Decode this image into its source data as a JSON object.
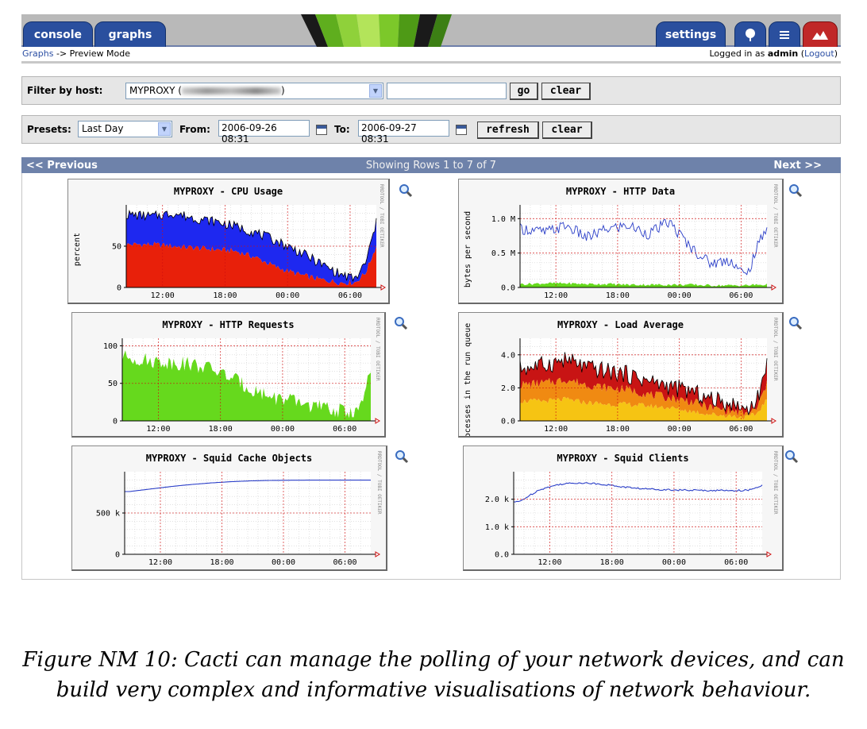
{
  "header": {
    "tabs": [
      {
        "label": "console"
      },
      {
        "label": "graphs"
      },
      {
        "label": "settings"
      }
    ]
  },
  "breadcrumb": {
    "link": "Graphs",
    "separator": " -> ",
    "current": "Preview Mode"
  },
  "login": {
    "prefix": "Logged in as ",
    "user": "admin",
    "logout": "Logout"
  },
  "host_filter": {
    "label": "Filter by host:",
    "selected_prefix": "MYPROXY (",
    "selected_suffix": ")",
    "search_value": "",
    "go_label": "go",
    "clear_label": "clear"
  },
  "presets": {
    "label": "Presets:",
    "selected": "Last Day",
    "from_label": "From:",
    "from_value": "2006-09-26 08:31",
    "to_label": "To:",
    "to_value": "2006-09-27 08:31",
    "refresh_label": "refresh",
    "clear_label": "clear"
  },
  "pager": {
    "prev": "<< Previous",
    "status": "Showing Rows 1 to 7 of 7",
    "next": "Next >>"
  },
  "watermark": "RRDTOOL / TOBI OETIKER",
  "x_ticks": [
    "12:00",
    "18:00",
    "00:00",
    "06:00"
  ],
  "colors": {
    "red": "#e8200a",
    "blue": "#1e28f0",
    "green": "#66d91d",
    "line_blue": "#2a3ec8",
    "orange": "#f08a12",
    "yellow": "#f6c413",
    "dark_red": "#c81414"
  },
  "graphs": [
    {
      "title": "MYPROXY - CPU Usage",
      "ylabel": "percent",
      "yticks": [
        "50",
        "0"
      ]
    },
    {
      "title": "MYPROXY - HTTP Data",
      "ylabel": "bytes per second",
      "yticks": [
        "1.0 M",
        "0.5 M",
        "0.0"
      ]
    },
    {
      "title": "MYPROXY - HTTP Requests",
      "ylabel": "",
      "yticks": [
        "100",
        "50",
        "0"
      ]
    },
    {
      "title": "MYPROXY - Load Average",
      "ylabel": "rocesses in the run queue",
      "yticks": [
        "4.0",
        "2.0",
        "0.0"
      ]
    },
    {
      "title": "MYPROXY - Squid Cache Objects",
      "ylabel": "",
      "yticks": [
        "500 k",
        "0"
      ]
    },
    {
      "title": "MYPROXY - Squid Clients",
      "ylabel": "",
      "yticks": [
        "2.0 k",
        "1.0 k",
        "0.0"
      ]
    }
  ],
  "chart_data": [
    {
      "type": "area",
      "title": "MYPROXY - CPU Usage",
      "ylabel": "percent",
      "ylim": [
        0,
        100
      ],
      "x": [
        "09:00",
        "11:00",
        "13:00",
        "15:00",
        "17:00",
        "19:00",
        "21:00",
        "23:00",
        "01:00",
        "03:00",
        "05:00",
        "06:30",
        "07:30",
        "08:30"
      ],
      "series": [
        {
          "values": [
            52,
            52,
            50,
            48,
            46,
            44,
            36,
            24,
            16,
            10,
            6,
            6,
            18,
            50
          ]
        },
        {
          "values": [
            88,
            86,
            90,
            84,
            80,
            74,
            66,
            56,
            44,
            30,
            16,
            10,
            30,
            78
          ]
        }
      ]
    },
    {
      "type": "line",
      "title": "MYPROXY - HTTP Data",
      "ylabel": "bytes per second",
      "ylim": [
        0,
        1.2
      ],
      "x": [
        "09:00",
        "11:00",
        "13:00",
        "15:00",
        "17:00",
        "19:00",
        "21:00",
        "23:00",
        "01:00",
        "03:00",
        "05:00",
        "06:30",
        "07:30",
        "08:30"
      ],
      "series": [
        {
          "values": [
            0.85,
            0.8,
            0.9,
            0.72,
            0.85,
            0.9,
            0.78,
            0.95,
            0.6,
            0.35,
            0.4,
            0.15,
            0.55,
            0.9
          ]
        },
        {
          "values": [
            0.05,
            0.06,
            0.06,
            0.05,
            0.05,
            0.04,
            0.04,
            0.04,
            0.04,
            0.03,
            0.03,
            0.03,
            0.04,
            0.04
          ]
        }
      ]
    },
    {
      "type": "area",
      "title": "MYPROXY - HTTP Requests",
      "ylim": [
        0,
        110
      ],
      "x": [
        "09:00",
        "11:00",
        "13:00",
        "15:00",
        "17:00",
        "19:00",
        "21:00",
        "23:00",
        "01:00",
        "03:00",
        "05:00",
        "06:30",
        "07:30",
        "08:30"
      ],
      "series": [
        {
          "values": [
            85,
            80,
            78,
            76,
            70,
            58,
            42,
            32,
            26,
            20,
            14,
            12,
            16,
            65
          ]
        }
      ]
    },
    {
      "type": "area",
      "title": "MYPROXY - Load Average",
      "ylabel": "rocesses in the run queue",
      "ylim": [
        0,
        5
      ],
      "x": [
        "09:00",
        "11:00",
        "13:00",
        "15:00",
        "17:00",
        "19:00",
        "21:00",
        "23:00",
        "01:00",
        "03:00",
        "05:00",
        "06:30",
        "07:30",
        "08:30"
      ],
      "series": [
        {
          "values": [
            1.2,
            1.2,
            1.3,
            1.1,
            1.0,
            1.0,
            0.9,
            0.8,
            0.6,
            0.4,
            0.3,
            0.2,
            0.4,
            1.3
          ]
        },
        {
          "values": [
            2.2,
            2.3,
            2.5,
            2.2,
            2.0,
            1.9,
            1.6,
            1.4,
            1.2,
            0.8,
            0.6,
            0.4,
            0.7,
            2.2
          ]
        },
        {
          "values": [
            3.2,
            3.4,
            3.7,
            3.2,
            3.0,
            2.8,
            2.4,
            2.1,
            1.8,
            1.3,
            1.0,
            0.7,
            1.1,
            3.4
          ]
        }
      ]
    },
    {
      "type": "line",
      "title": "MYPROXY - Squid Cache Objects",
      "ylim": [
        0,
        1000
      ],
      "x": [
        "09:00",
        "11:00",
        "13:00",
        "15:00",
        "17:00",
        "19:00",
        "21:00",
        "23:00",
        "01:00",
        "03:00",
        "05:00",
        "06:30",
        "07:30",
        "08:30"
      ],
      "series": [
        {
          "values": [
            760,
            790,
            820,
            845,
            865,
            880,
            890,
            895,
            897,
            898,
            898,
            898,
            898,
            898
          ]
        }
      ]
    },
    {
      "type": "line",
      "title": "MYPROXY - Squid Clients",
      "ylim": [
        0,
        3000
      ],
      "x": [
        "09:00",
        "11:00",
        "13:00",
        "15:00",
        "17:00",
        "19:00",
        "21:00",
        "23:00",
        "01:00",
        "03:00",
        "05:00",
        "06:30",
        "07:30",
        "08:30"
      ],
      "series": [
        {
          "values": [
            1900,
            2350,
            2550,
            2600,
            2550,
            2450,
            2380,
            2350,
            2330,
            2320,
            2320,
            2320,
            2340,
            2500
          ]
        }
      ]
    }
  ],
  "caption": "Figure NM 10: Cacti can manage the polling of your network devices, and can build very complex and informative visualisations of network behaviour."
}
